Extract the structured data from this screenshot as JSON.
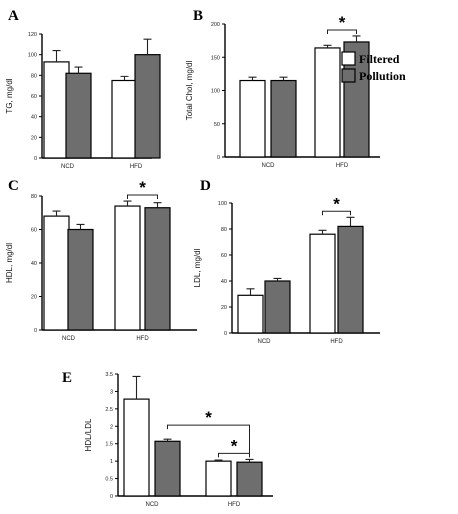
{
  "legend": {
    "filtered_label": "Filtered",
    "pollution_label": "Pollution",
    "filtered_color": "#ffffff",
    "pollution_color": "#6e6e6e"
  },
  "chart_data": [
    {
      "type": "bar",
      "panel": "A",
      "ylabel": "TG, mg/dl",
      "categories": [
        "NCD",
        "HFD"
      ],
      "ylim": [
        0,
        120
      ],
      "yticks": [
        0,
        20,
        40,
        60,
        80,
        100,
        120
      ],
      "series": [
        {
          "name": "Filtered",
          "values": [
            93,
            75
          ],
          "errors": [
            11,
            4
          ]
        },
        {
          "name": "Pollution",
          "values": [
            82,
            100
          ],
          "errors": [
            6,
            15
          ]
        }
      ],
      "significance": []
    },
    {
      "type": "bar",
      "panel": "B",
      "ylabel": "Total Chol, mg/dl",
      "categories": [
        "NCD",
        "HFD"
      ],
      "ylim": [
        0,
        200
      ],
      "yticks": [
        0,
        50,
        100,
        150,
        200
      ],
      "series": [
        {
          "name": "Filtered",
          "values": [
            115,
            164
          ],
          "errors": [
            5,
            4
          ]
        },
        {
          "name": "Pollution",
          "values": [
            115,
            173
          ],
          "errors": [
            5,
            9
          ]
        }
      ],
      "significance": [
        {
          "category": "HFD",
          "label": "*"
        }
      ]
    },
    {
      "type": "bar",
      "panel": "C",
      "ylabel": "HDL, mg/dl",
      "categories": [
        "NCD",
        "HFD"
      ],
      "ylim": [
        0,
        80
      ],
      "yticks": [
        0,
        20,
        40,
        60,
        80
      ],
      "series": [
        {
          "name": "Filtered",
          "values": [
            68,
            74
          ],
          "errors": [
            3,
            3
          ]
        },
        {
          "name": "Pollution",
          "values": [
            60,
            73
          ],
          "errors": [
            3,
            3
          ]
        }
      ],
      "significance": [
        {
          "category": "HFD",
          "label": "*"
        }
      ]
    },
    {
      "type": "bar",
      "panel": "D",
      "ylabel": "LDL, mg/dl",
      "categories": [
        "NCD",
        "HFD"
      ],
      "ylim": [
        0,
        100
      ],
      "yticks": [
        0,
        20,
        40,
        60,
        80,
        100
      ],
      "series": [
        {
          "name": "Filtered",
          "values": [
            29,
            76
          ],
          "errors": [
            5,
            3
          ]
        },
        {
          "name": "Pollution",
          "values": [
            40,
            82
          ],
          "errors": [
            2,
            7
          ]
        }
      ],
      "significance": [
        {
          "category": "HFD",
          "label": "*"
        }
      ]
    },
    {
      "type": "bar",
      "panel": "E",
      "ylabel": "HDL/LDL",
      "categories": [
        "NCD",
        "HFD"
      ],
      "ylim": [
        0,
        3.5
      ],
      "yticks": [
        0,
        0.5,
        1,
        1.5,
        2,
        2.5,
        3,
        3.5
      ],
      "series": [
        {
          "name": "Filtered",
          "values": [
            2.78,
            1.0
          ],
          "errors": [
            0.65,
            0.03
          ]
        },
        {
          "name": "Pollution",
          "values": [
            1.57,
            0.97
          ],
          "errors": [
            0.06,
            0.08
          ]
        }
      ],
      "significance": [
        {
          "category": "HFD",
          "label": "*"
        },
        {
          "category": "NCD-HFD",
          "label": "*"
        }
      ]
    }
  ]
}
